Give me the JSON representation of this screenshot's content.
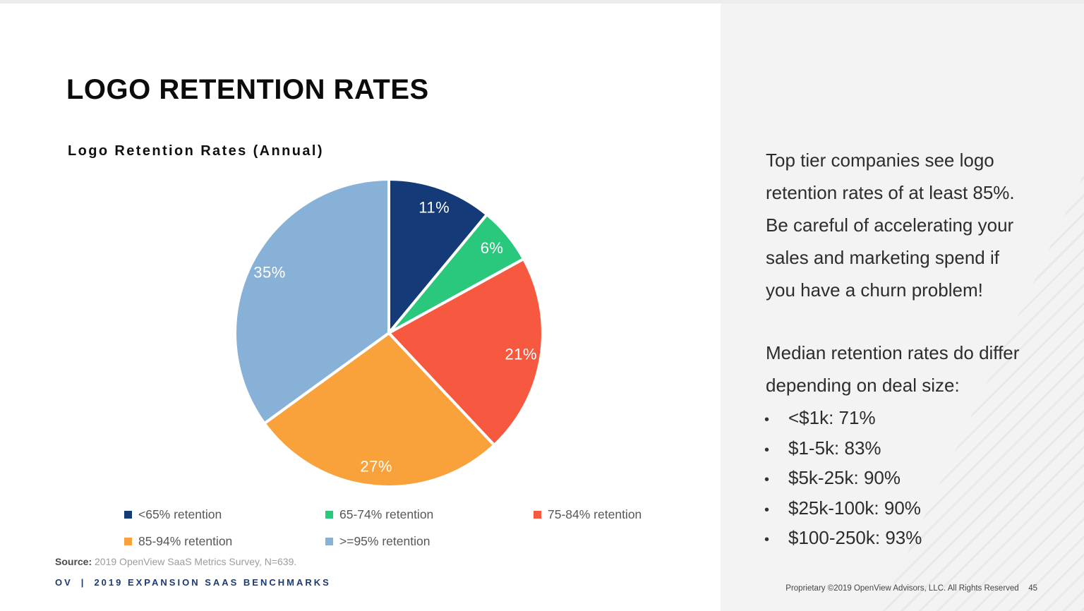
{
  "slide": {
    "title": "LOGO RETENTION RATES"
  },
  "chart_data": {
    "type": "pie",
    "title": "Logo Retention Rates (Annual)",
    "categories": [
      "<65% retention",
      "65-74% retention",
      "75-84% retention",
      "85-94% retention",
      ">=95% retention"
    ],
    "values": [
      11,
      6,
      21,
      27,
      35
    ],
    "unit": "%",
    "slice_labels": [
      "11%",
      "6%",
      "21%",
      "27%",
      "35%"
    ],
    "colors": [
      "#153a78",
      "#29c87d",
      "#f6593f",
      "#f9a23c",
      "#87b1d7"
    ],
    "slice_label_color": "#ffffff",
    "start_angle_deg": 0,
    "direction": "clockwise-from-top",
    "separator_color": "#ffffff",
    "legend_position": "bottom"
  },
  "source": {
    "label": "Source:",
    "text": " 2019 OpenView SaaS Metrics Survey, N=639."
  },
  "footer_left": {
    "brand": "OV",
    "divider": "|",
    "title": "2019 EXPANSION SAAS BENCHMARKS"
  },
  "right_panel": {
    "paragraph1": "Top tier companies see logo\nretention rates of at least 85%.\nBe careful of accelerating your\nsales and marketing spend if\nyou have a churn problem!",
    "paragraph2": "Median retention rates do differ\ndepending on deal size:",
    "bullet_glyph": "•",
    "bullets": [
      "<$1k: 71%",
      "$1-5k: 83%",
      "$5k-25k: 90%",
      "$25k-100k: 90%",
      "$100-250k: 93%"
    ],
    "footer": "Proprietary ©2019 OpenView Advisors, LLC. All Rights Reserved",
    "page_number": "45"
  },
  "theme": {
    "right_panel_bg": "#f4f3f4",
    "footer_navy": "#1a3a74",
    "legend_text": "#57575b",
    "body_text": "#2d2d2d"
  }
}
